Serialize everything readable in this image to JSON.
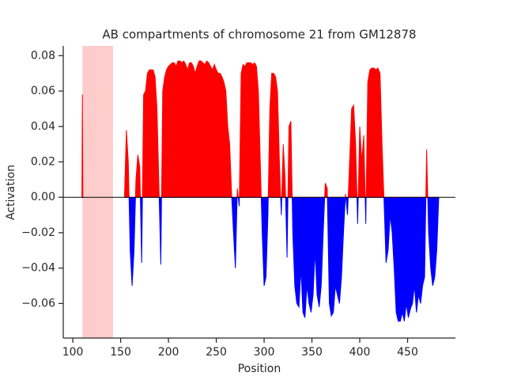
{
  "chart_data": {
    "type": "area",
    "title": "AB compartments of chromosome 21 from GM12878",
    "x_label": "Position",
    "y_label": "Activation",
    "xlim": [
      90,
      500
    ],
    "ylim": [
      -0.0795,
      0.0855
    ],
    "xticks": [
      100,
      150,
      200,
      250,
      300,
      350,
      400,
      450
    ],
    "yticks": [
      {
        "value": -0.06,
        "label": "−0.06"
      },
      {
        "value": -0.04,
        "label": "−0.04"
      },
      {
        "value": -0.02,
        "label": "−0.02"
      },
      {
        "value": 0,
        "label": "0.00"
      },
      {
        "value": 0.02,
        "label": "0.02"
      },
      {
        "value": 0.04,
        "label": "0.04"
      },
      {
        "value": 0.06,
        "label": "0.06"
      },
      {
        "value": 0.08,
        "label": "0.08"
      }
    ],
    "positive_color": "#ff0000",
    "negative_color": "#0000ff",
    "span": {
      "xlim": [
        110,
        142
      ],
      "color": "#ffcccc"
    },
    "x": [
      109.5,
      110,
      110.5,
      130,
      154,
      156,
      158,
      160,
      162,
      164,
      166,
      168,
      170,
      172,
      174,
      176,
      178,
      180,
      182,
      184,
      186,
      188,
      190,
      192,
      194,
      196,
      198,
      200,
      202,
      204,
      206,
      208,
      210,
      212,
      214,
      216,
      218,
      220,
      222,
      224,
      226,
      228,
      230,
      232,
      234,
      236,
      238,
      240,
      242,
      244,
      246,
      248,
      250,
      252,
      254,
      256,
      258,
      260,
      262,
      264,
      266,
      268,
      270,
      272,
      274,
      276,
      278,
      280,
      282,
      284,
      286,
      288,
      290,
      292,
      294,
      296,
      298,
      300,
      302,
      304,
      306,
      308,
      310,
      312,
      314,
      316,
      318,
      320,
      322,
      324,
      326,
      328,
      330,
      332.1,
      334.2,
      336.4,
      338.5,
      340.6,
      342.7,
      344.8,
      347.0,
      349.1,
      351.2,
      353.3,
      355.4,
      357.6,
      359.7,
      361.8,
      363.9,
      366.0,
      368.2,
      370.3,
      372.4,
      374.5,
      376.6,
      378.8,
      380.9,
      383.0,
      385.1,
      387.2,
      389.4,
      391.5,
      393.6,
      395.7,
      397.8,
      400.0,
      402.1,
      404.2,
      406.3,
      408.4,
      410.6,
      412.7,
      414.8,
      416.9,
      419.0,
      421.2,
      423.3,
      425.4,
      427.5,
      429.6,
      431.8,
      433.9,
      436.0,
      438.1,
      440.2,
      442.4,
      444.5,
      446.6,
      448.7,
      450.8,
      453.0,
      455.1,
      457.2,
      459.3,
      461.4,
      463.6,
      465.7,
      467.8,
      469.9,
      472.0,
      474.2,
      476.3,
      478.4,
      480.5,
      482.6
    ],
    "values": [
      0,
      0.058,
      0,
      null,
      0,
      0.038,
      0.02,
      -0.03,
      -0.05,
      -0.03,
      0.01,
      0.024,
      0.017,
      -0.037,
      0.058,
      0.06,
      0.07,
      0.072,
      0.072,
      0.072,
      0.068,
      0.05,
      0.007,
      -0.038,
      0.06,
      0.068,
      0.072,
      0.074,
      0.075,
      0.076,
      0.076,
      0.074,
      0.077,
      0.077,
      0.076,
      0.077,
      0.075,
      0.072,
      0.076,
      0.076,
      0.074,
      0.07,
      0.074,
      0.077,
      0.077,
      0.076,
      0.075,
      0.077,
      0.076,
      0.074,
      0.072,
      0.075,
      0.072,
      0.07,
      0.07,
      0.068,
      0.065,
      0.06,
      0.04,
      0.03,
      0.002,
      -0.02,
      -0.04,
      0.005,
      -0.005,
      0.07,
      0.075,
      0.074,
      0.076,
      0.076,
      0.076,
      0.075,
      0.076,
      0.074,
      0.06,
      0.02,
      -0.02,
      -0.05,
      -0.045,
      -0.01,
      0.05,
      0.07,
      0.07,
      0.068,
      0.06,
      0.02,
      -0.01,
      0.03,
      0.01,
      -0.034,
      0.04,
      0.043,
      -0.02,
      -0.05,
      -0.06,
      -0.062,
      -0.04,
      -0.065,
      -0.068,
      -0.05,
      -0.06,
      -0.065,
      -0.055,
      -0.03,
      -0.055,
      -0.062,
      -0.05,
      -0.02,
      0.008,
      0.005,
      -0.06,
      -0.067,
      -0.065,
      -0.05,
      -0.055,
      -0.06,
      -0.045,
      -0.02,
      0.002,
      -0.01,
      0.02,
      0.05,
      0.052,
      0.03,
      -0.015,
      0.04,
      0.02,
      0.035,
      -0.015,
      0.065,
      0.072,
      0.073,
      0.073,
      0.072,
      0.073,
      0.07,
      0.03,
      -0.002,
      -0.037,
      -0.03,
      -0.01,
      -0.02,
      -0.04,
      -0.065,
      -0.07,
      -0.07,
      -0.065,
      -0.07,
      -0.06,
      -0.068,
      -0.063,
      -0.06,
      -0.05,
      -0.065,
      -0.055,
      -0.06,
      -0.05,
      -0.045,
      0.027,
      -0.02,
      -0.04,
      -0.05,
      -0.045,
      -0.03,
      0
    ]
  }
}
